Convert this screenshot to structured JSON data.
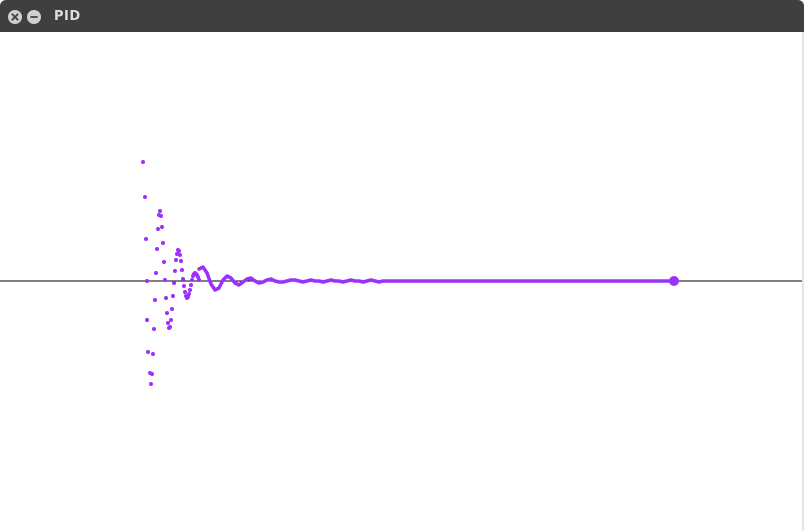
{
  "window": {
    "title": "PID"
  },
  "icons": {
    "close": "close-icon",
    "minimize": "minimize-icon"
  },
  "colors": {
    "titlebar": "#3f3f3f",
    "trace": "#9b30ff",
    "baseline": "#000000",
    "background": "#ffffff"
  },
  "chart_data": {
    "type": "scatter",
    "title": "",
    "xlabel": "",
    "ylabel": "",
    "grid": false,
    "legend": "none",
    "setpoint": 0,
    "xlim": [
      0,
      804
    ],
    "ylim": [
      -101,
      149
    ],
    "series": [
      {
        "values": [
          [
            143,
            119
          ],
          [
            145,
            84
          ],
          [
            146,
            42
          ],
          [
            147,
            0
          ],
          [
            147,
            -39
          ],
          [
            148,
            -71
          ],
          [
            150,
            -92
          ],
          [
            151,
            -103
          ],
          [
            152,
            -93
          ],
          [
            153,
            -73
          ],
          [
            154,
            -48
          ],
          [
            155,
            -19
          ],
          [
            156,
            8
          ],
          [
            157,
            32
          ],
          [
            158,
            52
          ],
          [
            159,
            66
          ],
          [
            160,
            70
          ],
          [
            161,
            65
          ],
          [
            162,
            54
          ],
          [
            163,
            38
          ],
          [
            164,
            19
          ],
          [
            165,
            1
          ],
          [
            166,
            -17
          ],
          [
            167,
            -32
          ],
          [
            168,
            -42
          ],
          [
            169,
            -47
          ],
          [
            170,
            -46
          ],
          [
            171,
            -39
          ],
          [
            172,
            -28
          ],
          [
            173,
            -15
          ],
          [
            174,
            -2
          ],
          [
            175,
            10
          ],
          [
            176,
            21
          ],
          [
            177,
            27
          ],
          [
            178,
            31
          ],
          [
            179,
            30
          ],
          [
            180,
            26
          ],
          [
            181,
            20
          ],
          [
            182,
            11
          ],
          [
            183,
            2
          ],
          [
            184,
            -5
          ],
          [
            185,
            -11
          ],
          [
            186,
            -15
          ],
          [
            187,
            -17
          ],
          [
            188,
            -16
          ],
          [
            189,
            -13
          ],
          [
            190,
            -9
          ],
          [
            191,
            -4
          ],
          [
            192,
            1
          ],
          [
            193,
            5
          ],
          [
            194,
            7
          ],
          [
            195,
            8
          ],
          [
            196,
            7
          ],
          [
            197,
            6
          ],
          [
            198,
            4
          ],
          [
            199,
            1
          ]
        ],
        "trail": [
          [
            199,
            12
          ],
          [
            203,
            14
          ],
          [
            207,
            8
          ],
          [
            211,
            -3
          ],
          [
            215,
            -9
          ],
          [
            219,
            -7
          ],
          [
            223,
            1
          ],
          [
            227,
            5
          ],
          [
            231,
            3
          ],
          [
            235,
            -2
          ],
          [
            239,
            -4
          ],
          [
            243,
            -1
          ],
          [
            247,
            2
          ],
          [
            251,
            3
          ],
          [
            255,
            0
          ],
          [
            259,
            -2
          ],
          [
            263,
            -1
          ],
          [
            267,
            1
          ],
          [
            271,
            2
          ],
          [
            275,
            0
          ],
          [
            279,
            -1
          ],
          [
            283,
            -1
          ],
          [
            287,
            0
          ],
          [
            291,
            1
          ],
          [
            295,
            1
          ],
          [
            299,
            0
          ],
          [
            303,
            -1
          ],
          [
            307,
            0
          ],
          [
            311,
            1
          ],
          [
            315,
            0
          ],
          [
            319,
            0
          ],
          [
            323,
            -1
          ],
          [
            327,
            0
          ],
          [
            331,
            1
          ],
          [
            335,
            0
          ],
          [
            339,
            0
          ],
          [
            343,
            -1
          ],
          [
            347,
            0
          ],
          [
            351,
            1
          ],
          [
            355,
            0
          ],
          [
            359,
            0
          ],
          [
            363,
            -1
          ],
          [
            367,
            0
          ],
          [
            371,
            1
          ],
          [
            375,
            0
          ],
          [
            379,
            -1
          ],
          [
            383,
            0
          ],
          [
            387,
            0
          ],
          [
            674,
            0
          ]
        ],
        "endpoint": [
          674,
          0
        ]
      }
    ]
  }
}
